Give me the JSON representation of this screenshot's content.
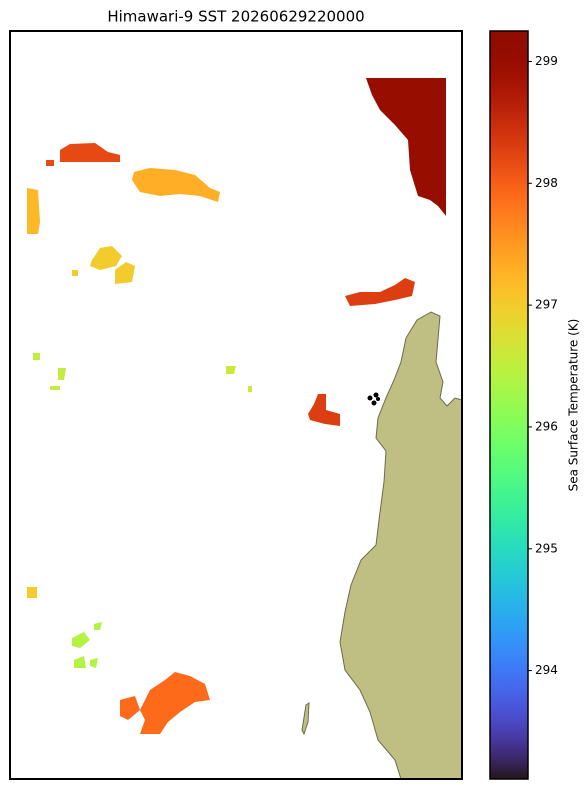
{
  "chart_data": {
    "type": "map",
    "title": "Himawari-9 SST 20260629220000",
    "colorbar_label": "Sea Surface Temperature (K)",
    "colormap": "turbo",
    "clim": [
      293.11,
      299.25
    ],
    "cticks": [
      294,
      295,
      296,
      297,
      298,
      299
    ],
    "patches": [
      {
        "values": [
          299.0
        ]
      },
      {
        "values": [
          298.2
        ]
      },
      {
        "values": [
          297.3
        ]
      },
      {
        "values": [
          297.2
        ]
      },
      {
        "values": [
          297.0
        ]
      },
      {
        "values": [
          298.3
        ]
      },
      {
        "values": [
          298.3
        ]
      },
      {
        "values": [
          297.9
        ]
      },
      {
        "values": [
          296.4
        ]
      },
      {
        "values": [
          296.6
        ]
      },
      {
        "values": [
          297.0
        ]
      },
      {
        "values": [
          296.5
        ]
      }
    ]
  }
}
